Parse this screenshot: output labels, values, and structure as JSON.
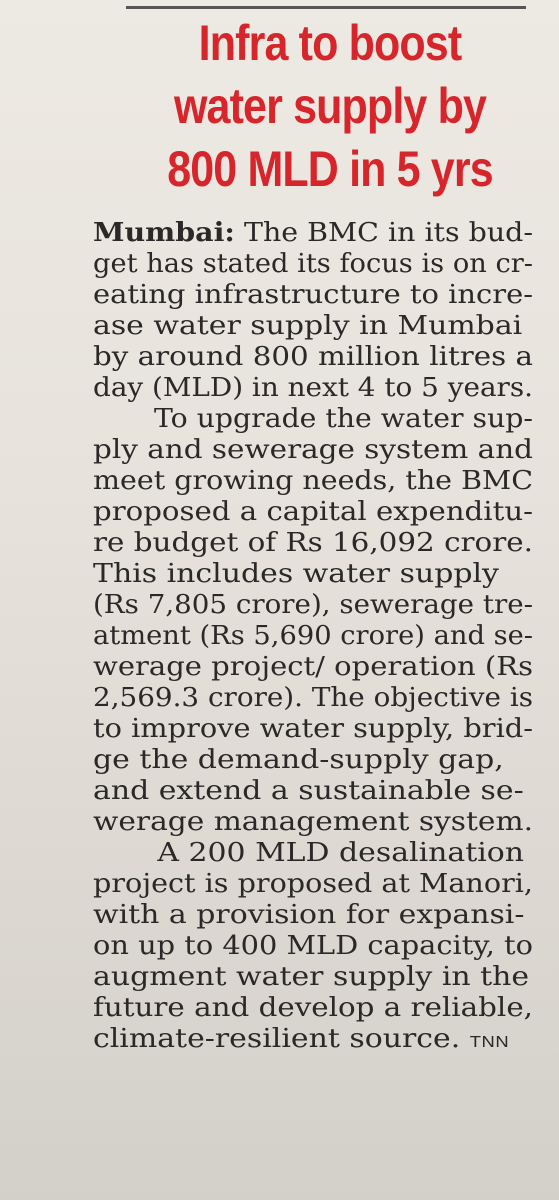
{
  "headline": {
    "lines": [
      "Infra to boost",
      "water supply by",
      "800 MLD in 5 yrs"
    ]
  },
  "article": {
    "dateline": "Mumbai:",
    "lines": [
      " The BMC in its bud-",
      "get has stated its focus is on cr-",
      "eating infrastructure to incre-",
      "ase water supply in Mumbai",
      "by around 800 million litres a",
      "day (MLD) in next 4 to 5 years.",
      "To upgrade the water sup-",
      "ply and sewerage system and",
      "meet growing needs, the BMC",
      "proposed a capital expenditu-",
      "re budget of Rs 16,092 crore.",
      "This includes water supply",
      "(Rs 7,805 crore), sewerage tre-",
      "atment (Rs 5,690 crore) and se-",
      "werage project/ operation (Rs",
      "2,569.3 crore). The objective is",
      "to improve water supply, brid-",
      "ge the demand-supply gap,",
      "and extend a sustainable se-",
      "werage management system.",
      "A 200 MLD desalination",
      "project is proposed at Manori,",
      "with a provision for expansi-",
      "on up to 400 MLD capacity, to",
      "augment water supply in the",
      "future and develop a reliable,",
      "climate-resilient source."
    ],
    "credit": "TNN"
  }
}
